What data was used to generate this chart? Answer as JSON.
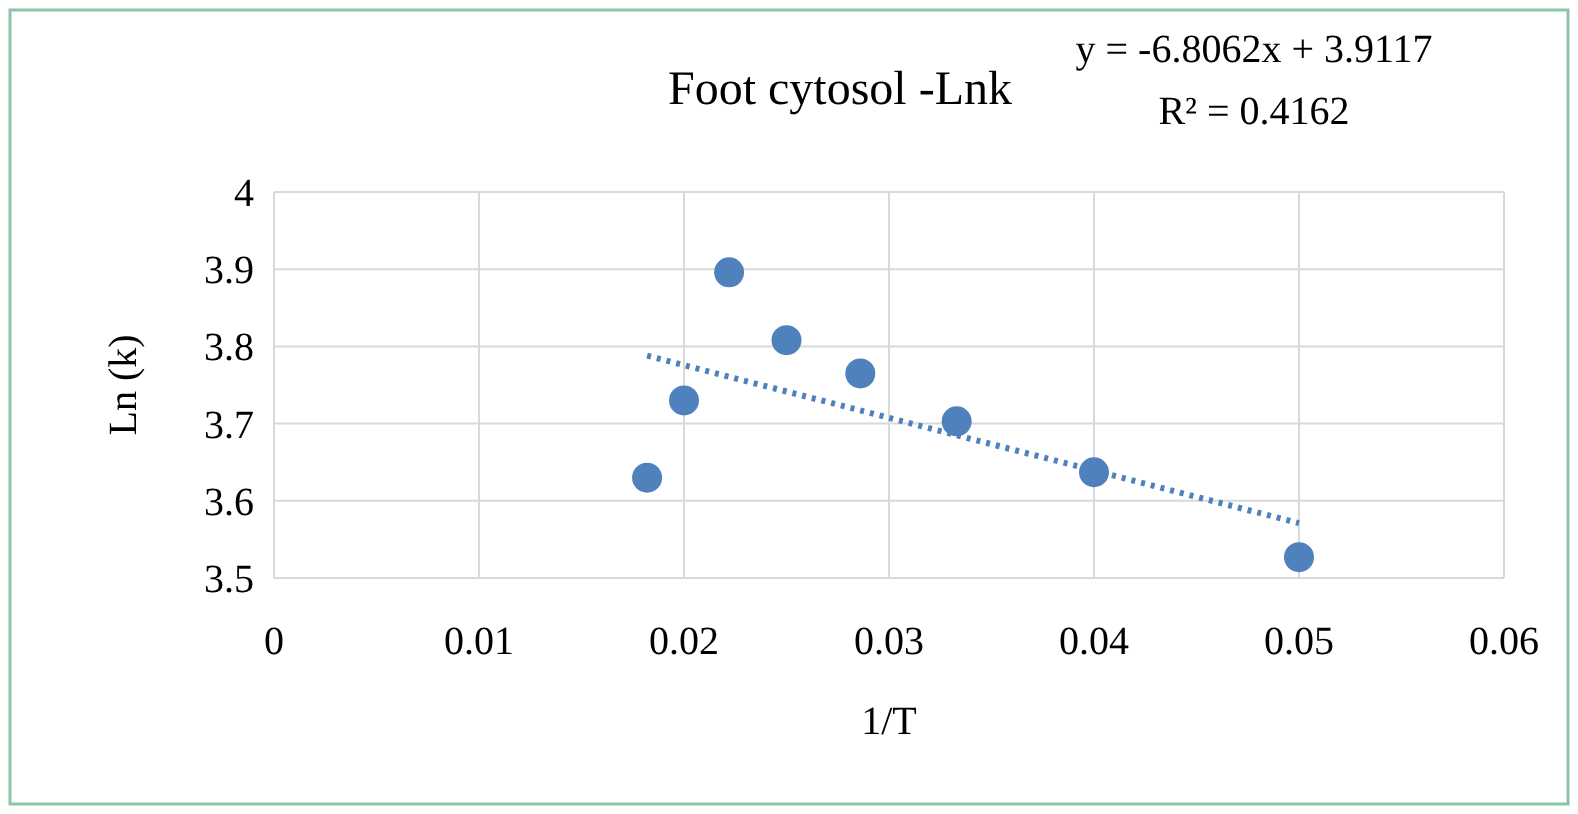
{
  "chart_data": {
    "type": "scatter",
    "title": "Foot cytosol -Lnk",
    "xlabel": "1/T",
    "ylabel": "Ln (k)",
    "annotations": [
      "y = -6.8062x + 3.9117",
      "R² = 0.4162"
    ],
    "series": [
      {
        "color": "#4f81bd",
        "x": [
          0.0182,
          0.02,
          0.0222,
          0.025,
          0.0286,
          0.0333,
          0.04,
          0.05
        ],
        "values": [
          3.63,
          3.73,
          3.896,
          3.808,
          3.765,
          3.703,
          3.637,
          3.527
        ],
        "marker": "circle"
      },
      {
        "type": "line",
        "color": "#4f81bd",
        "x": [
          0.0182,
          0.05
        ],
        "values": [
          3.788,
          3.571
        ],
        "line_style": "dotted",
        "marker": "none"
      }
    ],
    "xlim": [
      0,
      0.06
    ],
    "xticks": [
      0,
      0.01,
      0.02,
      0.03,
      0.04,
      0.05,
      0.06
    ],
    "ylim": [
      3.5,
      4
    ],
    "yticks": [
      {
        "value": 3.5,
        "label": "3.5"
      },
      3.6,
      3.7,
      3.8,
      3.9,
      4
    ],
    "grid": true
  }
}
